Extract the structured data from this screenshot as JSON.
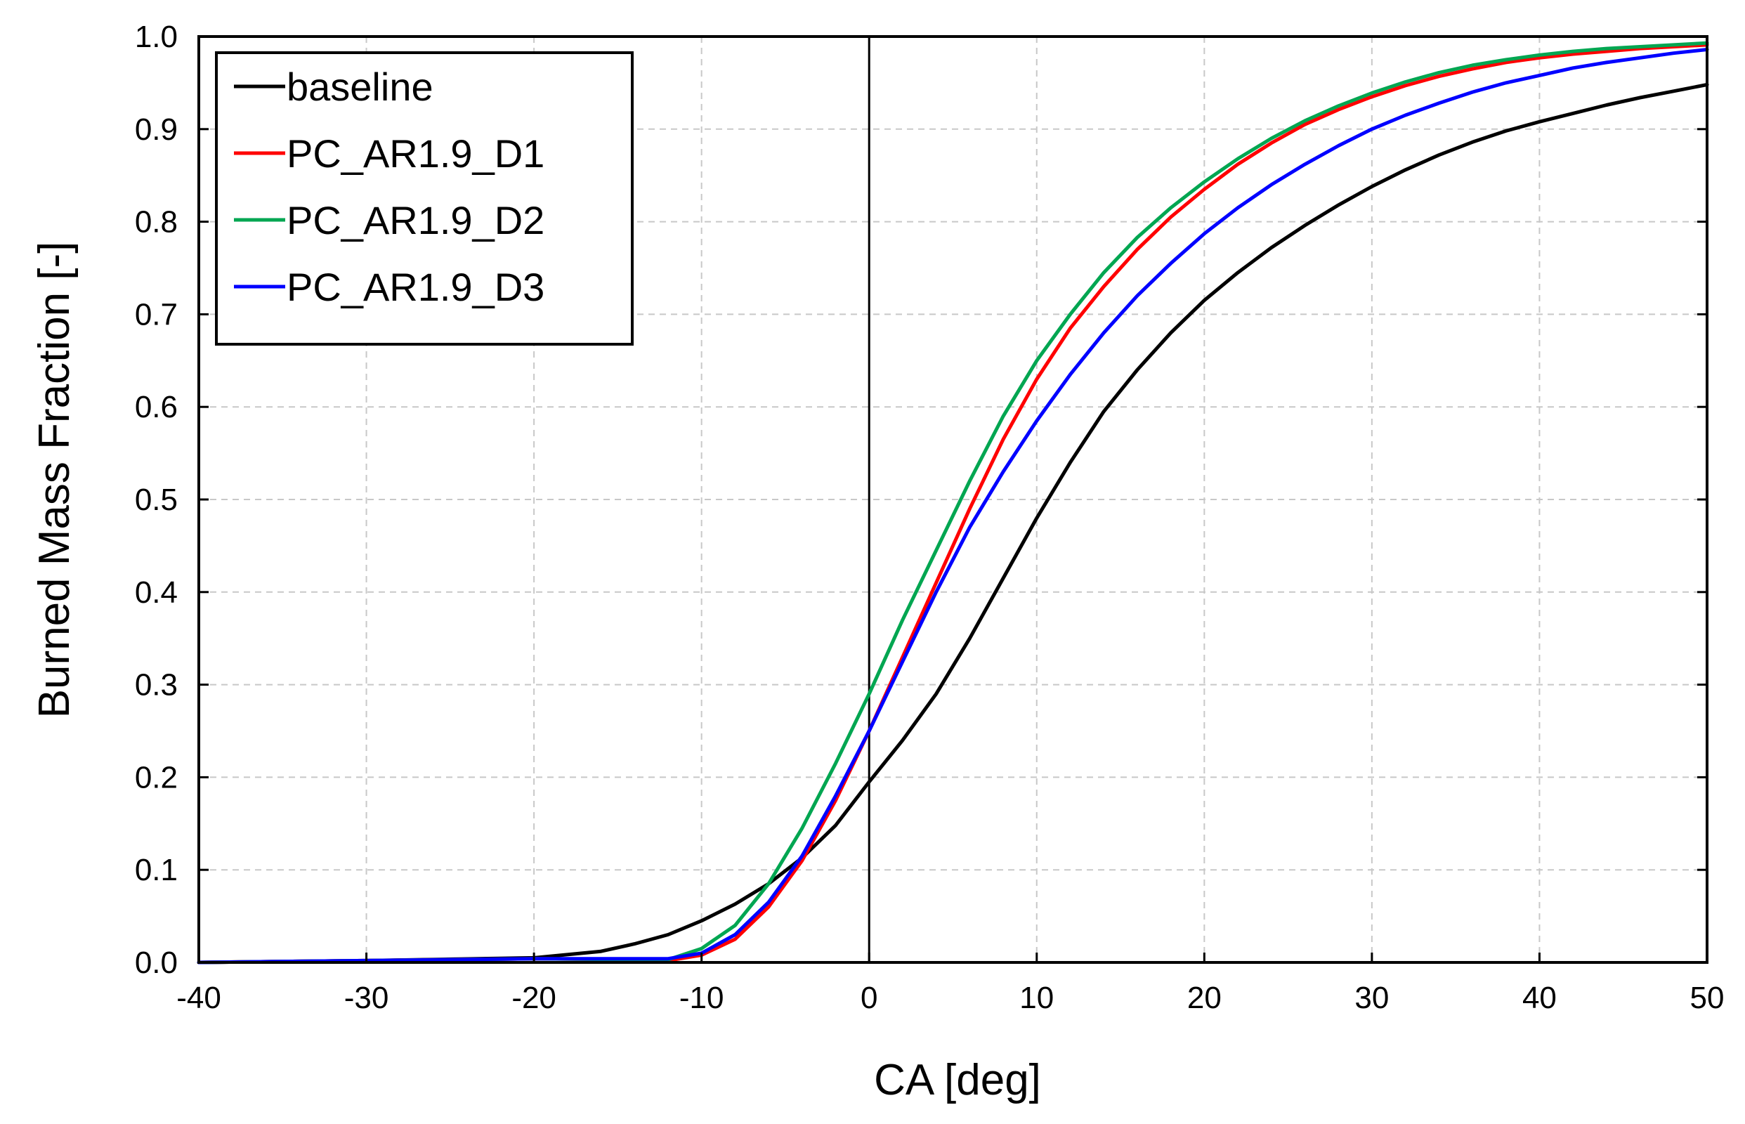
{
  "chart_data": {
    "type": "line",
    "title": "",
    "xlabel": "CA [deg]",
    "ylabel": "Burned Mass Fraction [-]",
    "xlim": [
      -40,
      50
    ],
    "ylim": [
      0.0,
      1.0
    ],
    "xticks": [
      -40,
      -30,
      -20,
      -10,
      0,
      10,
      20,
      30,
      40,
      50
    ],
    "xtick_labels": [
      "-40",
      "-30",
      "-20",
      "-10",
      "0",
      "10",
      "20",
      "30",
      "40",
      "50"
    ],
    "yticks": [
      0.0,
      0.1,
      0.2,
      0.3,
      0.4,
      0.5,
      0.6,
      0.7,
      0.8,
      0.9,
      1.0
    ],
    "ytick_labels": [
      "0.0",
      "0.1",
      "0.2",
      "0.3",
      "0.4",
      "0.5",
      "0.6",
      "0.7",
      "0.8",
      "0.9",
      "1.0"
    ],
    "grid": true,
    "legend_position": "top-left",
    "reference_lines": [
      {
        "axis": "x",
        "value": 0
      }
    ],
    "series": [
      {
        "name": "baseline",
        "color": "#000000",
        "x": [
          -40,
          -30,
          -20,
          -16,
          -14,
          -12,
          -10,
          -8,
          -6,
          -4,
          -2,
          0,
          2,
          4,
          6,
          8,
          10,
          12,
          14,
          16,
          18,
          20,
          22,
          24,
          26,
          28,
          30,
          32,
          34,
          36,
          38,
          40,
          42,
          44,
          46,
          48,
          50
        ],
        "y": [
          0.0,
          0.002,
          0.005,
          0.012,
          0.02,
          0.03,
          0.045,
          0.063,
          0.085,
          0.113,
          0.148,
          0.195,
          0.24,
          0.29,
          0.35,
          0.415,
          0.48,
          0.54,
          0.595,
          0.64,
          0.68,
          0.715,
          0.745,
          0.772,
          0.796,
          0.818,
          0.838,
          0.856,
          0.872,
          0.886,
          0.898,
          0.908,
          0.917,
          0.926,
          0.934,
          0.941,
          0.948
        ]
      },
      {
        "name": "PC_AR1.9_D1",
        "color": "#ff0000",
        "x": [
          -40,
          -30,
          -20,
          -14,
          -12,
          -10,
          -8,
          -6,
          -4,
          -2,
          0,
          2,
          4,
          6,
          8,
          10,
          12,
          14,
          16,
          18,
          20,
          22,
          24,
          26,
          28,
          30,
          32,
          34,
          36,
          38,
          40,
          42,
          44,
          46,
          48,
          50
        ],
        "y": [
          0.0,
          0.002,
          0.004,
          0.003,
          0.002,
          0.008,
          0.025,
          0.06,
          0.11,
          0.175,
          0.25,
          0.33,
          0.41,
          0.49,
          0.565,
          0.63,
          0.685,
          0.73,
          0.77,
          0.805,
          0.835,
          0.862,
          0.885,
          0.905,
          0.921,
          0.935,
          0.947,
          0.957,
          0.965,
          0.972,
          0.977,
          0.981,
          0.984,
          0.987,
          0.989,
          0.991
        ]
      },
      {
        "name": "PC_AR1.9_D2",
        "color": "#00a651",
        "x": [
          -40,
          -30,
          -20,
          -14,
          -12,
          -10,
          -8,
          -6,
          -4,
          -2,
          0,
          2,
          4,
          6,
          8,
          10,
          12,
          14,
          16,
          18,
          20,
          22,
          24,
          26,
          28,
          30,
          32,
          34,
          36,
          38,
          40,
          42,
          44,
          46,
          48,
          50
        ],
        "y": [
          0.0,
          0.002,
          0.004,
          0.003,
          0.003,
          0.015,
          0.04,
          0.085,
          0.145,
          0.215,
          0.29,
          0.37,
          0.445,
          0.52,
          0.59,
          0.65,
          0.7,
          0.745,
          0.783,
          0.815,
          0.843,
          0.868,
          0.89,
          0.909,
          0.925,
          0.939,
          0.951,
          0.961,
          0.969,
          0.975,
          0.98,
          0.984,
          0.987,
          0.989,
          0.991,
          0.993
        ]
      },
      {
        "name": "PC_AR1.9_D3",
        "color": "#0000ff",
        "x": [
          -40,
          -30,
          -20,
          -14,
          -12,
          -10,
          -8,
          -6,
          -4,
          -2,
          0,
          2,
          4,
          6,
          8,
          10,
          12,
          14,
          16,
          18,
          20,
          22,
          24,
          26,
          28,
          30,
          32,
          34,
          36,
          38,
          40,
          42,
          44,
          46,
          48,
          50
        ],
        "y": [
          0.0,
          0.002,
          0.004,
          0.004,
          0.004,
          0.01,
          0.03,
          0.065,
          0.115,
          0.18,
          0.25,
          0.325,
          0.4,
          0.47,
          0.53,
          0.585,
          0.635,
          0.68,
          0.72,
          0.755,
          0.787,
          0.815,
          0.84,
          0.862,
          0.882,
          0.9,
          0.915,
          0.928,
          0.94,
          0.95,
          0.958,
          0.966,
          0.972,
          0.977,
          0.982,
          0.986
        ]
      }
    ]
  }
}
